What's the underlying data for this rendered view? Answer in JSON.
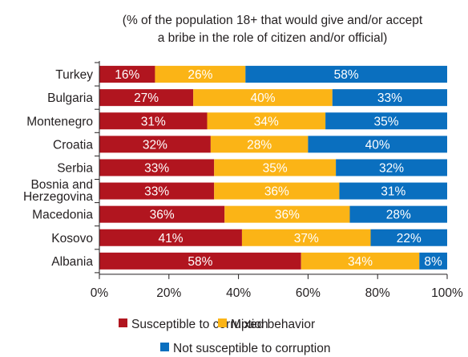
{
  "chart_data": {
    "type": "bar",
    "orientation": "horizontal",
    "stacked": true,
    "subtitle_lines": [
      "(% of the population 18+ that would give and/or accept",
      "a bribe in the role of citizen and/or official)"
    ],
    "categories": [
      [
        "Turkey"
      ],
      [
        "Bulgaria"
      ],
      [
        "Montenegro"
      ],
      [
        "Croatia"
      ],
      [
        "Serbia"
      ],
      [
        "Bosnia and",
        "Herzegovina"
      ],
      [
        "Macedonia"
      ],
      [
        "Kosovo"
      ],
      [
        "Albania"
      ]
    ],
    "series": [
      {
        "name": "Susceptible to corruption",
        "color": "#b1151f",
        "values": [
          16,
          27,
          31,
          32,
          33,
          33,
          36,
          41,
          58
        ]
      },
      {
        "name": "Mixed behavior",
        "color": "#fbb416",
        "values": [
          26,
          40,
          34,
          28,
          35,
          36,
          36,
          37,
          34
        ]
      },
      {
        "name": "Not susceptible to corruption",
        "color": "#0a6fbf",
        "values": [
          58,
          33,
          35,
          40,
          32,
          31,
          28,
          22,
          8
        ]
      }
    ],
    "x_ticks": [
      "0%",
      "20%",
      "40%",
      "60%",
      "80%",
      "100%"
    ],
    "xlim": [
      0,
      100
    ],
    "legend_position": "bottom"
  }
}
